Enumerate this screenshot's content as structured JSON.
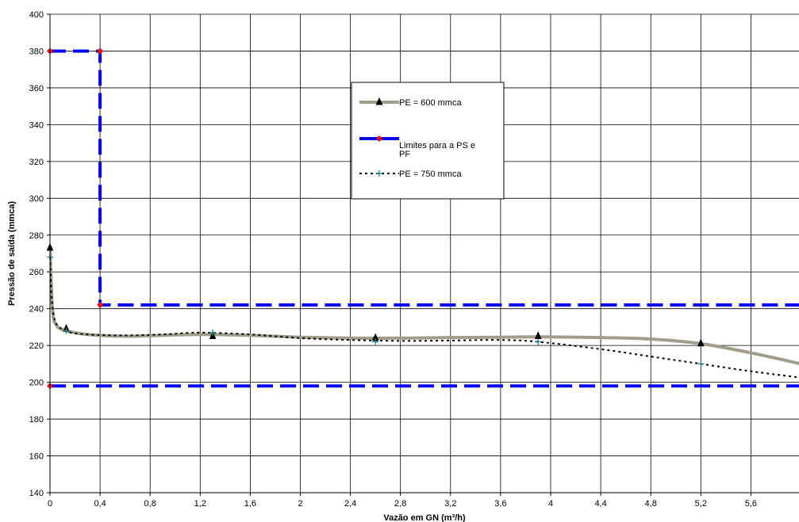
{
  "chart_data": {
    "type": "line",
    "title": "",
    "xlabel": "Vazão em GN (m³/h)",
    "ylabel": "Pressão de saída (mmca)",
    "xlim": [
      0,
      6
    ],
    "ylim": [
      140,
      400
    ],
    "x_ticks": [
      0,
      0.4,
      0.8,
      1.2,
      1.6,
      2,
      2.4,
      2.8,
      3.2,
      3.6,
      4,
      4.4,
      4.8,
      5.2,
      5.6
    ],
    "x_tick_labels": [
      "0",
      "0,4",
      "0,8",
      "1,2",
      "1,6",
      "2",
      "2,4",
      "2,8",
      "3,2",
      "3,6",
      "4",
      "4,4",
      "4,8",
      "5,2",
      "5,6"
    ],
    "y_ticks": [
      140,
      160,
      180,
      200,
      220,
      240,
      260,
      280,
      300,
      320,
      340,
      360,
      380,
      400
    ],
    "grid": true,
    "legend_position": "upper-center",
    "series": [
      {
        "name": "PE = 600 mmca",
        "color": "#a09d8a",
        "marker": "triangle",
        "marker_color": "#000000",
        "x": [
          0,
          0.13,
          1.3,
          2.6,
          3.9,
          5.2
        ],
        "y": [
          273,
          229,
          225,
          224,
          225,
          221
        ],
        "curve": {
          "x": [
            0,
            0.02,
            0.05,
            0.13,
            0.3,
            0.6,
            0.9,
            1.2,
            1.6,
            2,
            2.4,
            2.8,
            3.2,
            3.6,
            3.9,
            4.4,
            4.8,
            5.2,
            5.6,
            6
          ],
          "y": [
            273,
            240,
            231,
            228,
            226,
            225,
            225.5,
            226,
            225.5,
            224.5,
            224,
            224,
            224.3,
            224.5,
            224.7,
            224.3,
            223.5,
            221,
            216,
            210
          ]
        }
      },
      {
        "name": "Limites para a PS e PF",
        "color": "#0000ff",
        "marker": "diamond",
        "marker_color": "#ff0000",
        "segments": [
          {
            "x": [
              0,
              0.4,
              0.4,
              6.2
            ],
            "y": [
              380,
              380,
              242,
              242
            ]
          },
          {
            "x": [
              0,
              6.2
            ],
            "y": [
              198,
              198
            ]
          }
        ],
        "markers": {
          "x": [
            0,
            0.4,
            0.4,
            0
          ],
          "y": [
            380,
            380,
            242,
            198
          ]
        }
      },
      {
        "name": "PE = 750 mmca",
        "color": "#000000",
        "marker": "plus",
        "marker_color": "#2e8b8b",
        "x": [
          0,
          0.13,
          1.3,
          2.6,
          3.9,
          5.2
        ],
        "y": [
          268,
          228,
          227,
          222,
          222,
          210
        ],
        "curve": {
          "x": [
            0,
            0.03,
            0.13,
            0.3,
            0.6,
            0.9,
            1.2,
            1.6,
            2,
            2.4,
            2.8,
            3.2,
            3.6,
            3.9,
            4.4,
            4.8,
            5.2,
            5.6,
            6
          ],
          "y": [
            268,
            236,
            228,
            226,
            225.5,
            226,
            227,
            226,
            224,
            223,
            222.5,
            222.7,
            223,
            222,
            218,
            214,
            210,
            206,
            202.5
          ]
        }
      }
    ]
  }
}
